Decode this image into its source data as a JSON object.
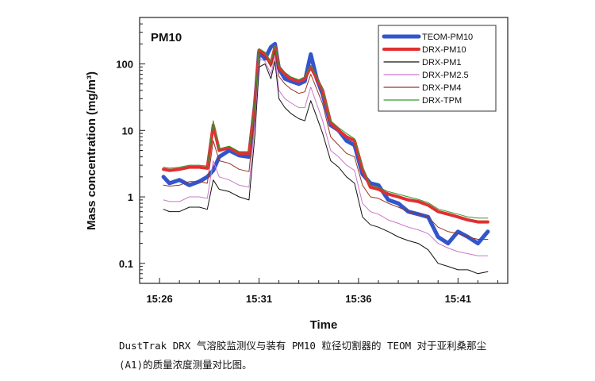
{
  "chart_data": {
    "type": "line",
    "title": "PM10",
    "xlabel": "Time",
    "ylabel": "Mass concentration (mg/m³)",
    "yscale": "log",
    "ylim": [
      0.05,
      500
    ],
    "xlim": [
      -1,
      17.5
    ],
    "x_unit": "minutes after 15:26",
    "xticks": [
      {
        "value": 0,
        "label": "15:26"
      },
      {
        "value": 5,
        "label": "15:31"
      },
      {
        "value": 10,
        "label": "15:36"
      },
      {
        "value": 15,
        "label": "15:41"
      }
    ],
    "yticks": [
      {
        "value": 0.1,
        "label": "0.1"
      },
      {
        "value": 1,
        "label": "1"
      },
      {
        "value": 10,
        "label": "10"
      },
      {
        "value": 100,
        "label": "100"
      }
    ],
    "legend_position": "top-right",
    "x": [
      0.2,
      0.5,
      1.0,
      1.5,
      2.0,
      2.4,
      2.7,
      3.0,
      3.5,
      4.0,
      4.5,
      4.8,
      5.0,
      5.3,
      5.6,
      5.8,
      6.0,
      6.3,
      6.6,
      7.0,
      7.3,
      7.6,
      7.9,
      8.2,
      8.6,
      9.0,
      9.4,
      9.8,
      10.2,
      10.6,
      11.0,
      11.5,
      12.0,
      12.5,
      13.0,
      13.5,
      14.0,
      14.5,
      15.0,
      15.5,
      16.0,
      16.5
    ],
    "series": [
      {
        "name": "TEOM-PM10",
        "color": "#3355cc",
        "width": 5,
        "values": [
          2.0,
          1.6,
          1.8,
          1.5,
          1.7,
          2.0,
          2.5,
          4.0,
          5.0,
          4.2,
          4.0,
          25,
          150,
          120,
          180,
          200,
          85,
          60,
          55,
          50,
          55,
          140,
          60,
          35,
          12,
          10,
          7,
          6,
          2.2,
          1.6,
          1.5,
          0.9,
          0.8,
          0.6,
          0.55,
          0.5,
          0.25,
          0.2,
          0.3,
          0.25,
          0.2,
          0.3
        ]
      },
      {
        "name": "DRX-PM10",
        "color": "#e03030",
        "width": 4,
        "values": [
          2.6,
          2.5,
          2.6,
          2.8,
          2.8,
          2.7,
          12,
          5.0,
          5.5,
          4.5,
          4.5,
          26,
          160,
          140,
          100,
          180,
          90,
          70,
          60,
          55,
          60,
          90,
          60,
          40,
          13,
          10,
          8,
          7,
          2.6,
          1.4,
          1.3,
          1.1,
          1.0,
          0.9,
          0.85,
          0.75,
          0.6,
          0.55,
          0.5,
          0.45,
          0.42,
          0.42
        ]
      },
      {
        "name": "DRX-PM1",
        "color": "#111111",
        "width": 1,
        "values": [
          0.65,
          0.6,
          0.6,
          0.7,
          0.7,
          0.65,
          1.8,
          1.3,
          1.2,
          1.0,
          0.9,
          9,
          90,
          100,
          60,
          110,
          30,
          22,
          18,
          15,
          14,
          28,
          16,
          9,
          3.5,
          2.8,
          2.0,
          1.6,
          0.5,
          0.38,
          0.35,
          0.3,
          0.25,
          0.22,
          0.2,
          0.16,
          0.1,
          0.09,
          0.08,
          0.08,
          0.07,
          0.075
        ]
      },
      {
        "name": "DRX-PM2.5",
        "color": "#cc77cc",
        "width": 1,
        "values": [
          0.9,
          0.85,
          0.85,
          1.0,
          1.0,
          0.95,
          3.5,
          2.0,
          1.8,
          1.5,
          1.4,
          14,
          120,
          110,
          70,
          130,
          40,
          30,
          26,
          22,
          22,
          45,
          25,
          14,
          5,
          4,
          3,
          2.5,
          0.8,
          0.6,
          0.55,
          0.45,
          0.4,
          0.35,
          0.32,
          0.28,
          0.2,
          0.17,
          0.15,
          0.14,
          0.13,
          0.13
        ]
      },
      {
        "name": "DRX-PM4",
        "color": "#993322",
        "width": 1,
        "values": [
          1.5,
          1.45,
          1.5,
          1.7,
          1.7,
          1.6,
          7,
          3.5,
          3.2,
          2.6,
          2.4,
          20,
          150,
          130,
          90,
          160,
          65,
          50,
          42,
          36,
          38,
          70,
          42,
          25,
          8,
          6,
          4.5,
          4.0,
          1.5,
          1.0,
          0.95,
          0.8,
          0.7,
          0.6,
          0.55,
          0.5,
          0.35,
          0.3,
          0.28,
          0.25,
          0.23,
          0.23
        ]
      },
      {
        "name": "DRX-TPM",
        "color": "#339933",
        "width": 1,
        "values": [
          2.8,
          2.7,
          2.8,
          3.0,
          3.0,
          2.9,
          14,
          5.3,
          5.8,
          4.8,
          4.8,
          28,
          170,
          150,
          110,
          190,
          95,
          75,
          64,
          58,
          64,
          95,
          64,
          42,
          14,
          11,
          9,
          7.5,
          2.8,
          1.5,
          1.4,
          1.2,
          1.1,
          1.0,
          0.92,
          0.82,
          0.66,
          0.6,
          0.55,
          0.5,
          0.48,
          0.48
        ]
      }
    ]
  },
  "caption": {
    "line1": "DustTrak DRX 气溶胶监测仪与装有 PM10 粒径切割器的 TEOM 对于亚利桑那尘",
    "line2": "(A1)的质量浓度测量对比图。"
  }
}
